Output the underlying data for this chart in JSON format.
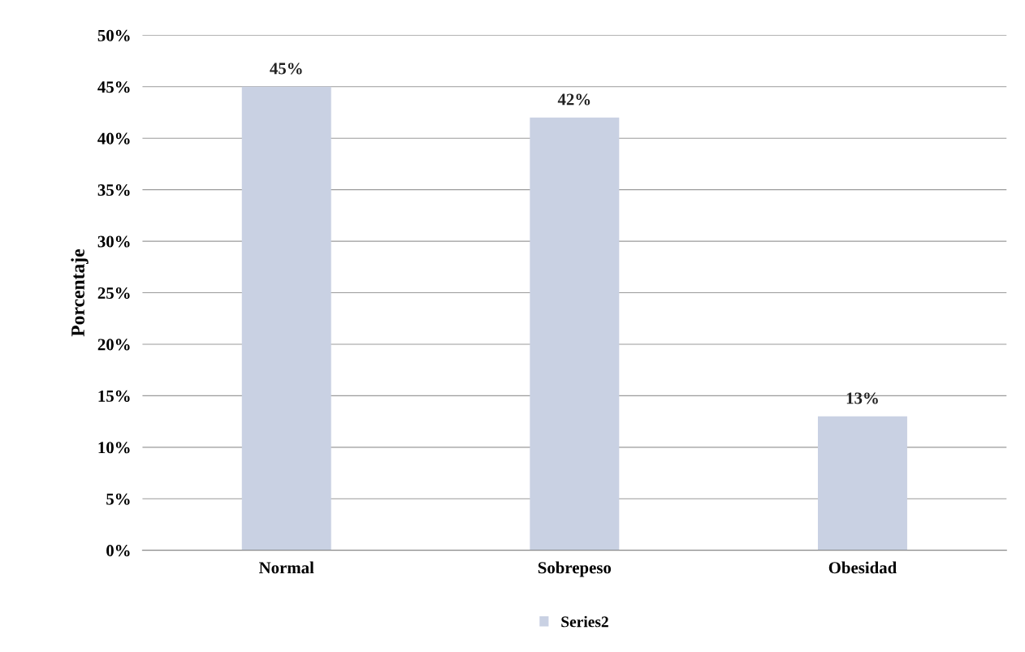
{
  "chart_data": {
    "type": "bar",
    "ylabel": "Porcentaje",
    "categories": [
      "Normal",
      "Sobrepeso",
      "Obesidad"
    ],
    "series": [
      {
        "name": "Series2",
        "color": "#c9d1e3",
        "values": [
          45,
          42,
          13
        ],
        "value_labels": [
          "45%",
          "42%",
          "13%"
        ]
      }
    ],
    "ylim": [
      0,
      50
    ],
    "yticks": [
      {
        "value": 0,
        "label": "0%"
      },
      {
        "value": 5,
        "label": "5%"
      },
      {
        "value": 10,
        "label": "10%"
      },
      {
        "value": 15,
        "label": "15%"
      },
      {
        "value": 20,
        "label": "20%"
      },
      {
        "value": 25,
        "label": "25%"
      },
      {
        "value": 30,
        "label": "30%"
      },
      {
        "value": 35,
        "label": "35%"
      },
      {
        "value": 40,
        "label": "40%"
      },
      {
        "value": 45,
        "label": "45%"
      },
      {
        "value": 50,
        "label": "50%"
      }
    ],
    "grid": "y",
    "legend": "bottom"
  }
}
